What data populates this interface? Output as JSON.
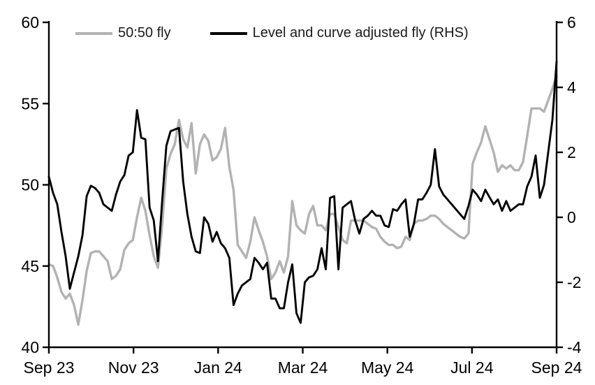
{
  "legend": {
    "items": [
      {
        "label": "50:50 fly",
        "color": "#b2b2b2",
        "swatch": "gray-line-swatch"
      },
      {
        "label": "Level and curve adjusted fly (RHS)",
        "color": "#000000",
        "swatch": "black-line-swatch"
      }
    ]
  },
  "colors": {
    "axis": "#000000",
    "background": "#ffffff",
    "series_gray": "#b2b2b2",
    "series_black": "#000000"
  },
  "chart_data": {
    "type": "line",
    "title": "",
    "xlabel": "",
    "ylabel_left": "",
    "ylabel_right": "",
    "x_tick_labels": [
      "Sep 23",
      "Nov 23",
      "Jan 24",
      "Mar 24",
      "May 24",
      "Jul 24",
      "Sep 24"
    ],
    "left_axis": {
      "range": [
        40,
        60
      ],
      "ticks": [
        40,
        45,
        50,
        55,
        60
      ]
    },
    "right_axis": {
      "range": [
        -4,
        6
      ],
      "ticks": [
        -4,
        -2,
        0,
        2,
        4,
        6
      ]
    },
    "grid": false,
    "legend_position": "top",
    "sampling": "values sampled at ~3-day intervals from Sep 2023 to Sep 2024, evenly spaced in x",
    "series": [
      {
        "name": "50:50 fly",
        "axis": "left",
        "color": "#b2b2b2",
        "width": 3.4,
        "values": [
          45.1,
          45.0,
          44.3,
          43.4,
          43.0,
          43.3,
          42.6,
          41.4,
          42.9,
          44.7,
          45.8,
          45.9,
          45.9,
          45.6,
          45.3,
          44.2,
          44.4,
          44.8,
          46.0,
          46.4,
          46.6,
          48.0,
          49.2,
          48.4,
          46.9,
          45.6,
          44.9,
          47.5,
          51.0,
          51.9,
          52.5,
          54.0,
          52.8,
          52.3,
          53.8,
          50.7,
          52.5,
          53.1,
          52.7,
          51.5,
          51.7,
          52.2,
          53.5,
          51.1,
          49.7,
          46.3,
          45.9,
          45.5,
          46.5,
          48.0,
          47.2,
          46.5,
          45.6,
          44.2,
          44.6,
          45.3,
          44.6,
          45.6,
          49.0,
          47.5,
          47.2,
          47.0,
          48.2,
          48.7,
          47.5,
          47.5,
          47.2,
          48.2,
          48.2,
          47.4,
          46.6,
          46.4,
          47.8,
          47.8,
          47.8,
          47.8,
          47.6,
          47.4,
          47.3,
          46.8,
          46.5,
          46.3,
          46.3,
          46.1,
          46.2,
          46.8,
          46.6,
          47.6,
          47.8,
          47.8,
          47.9,
          48.1,
          48.1,
          47.9,
          47.6,
          47.4,
          47.2,
          47.0,
          46.8,
          46.7,
          47.0,
          51.3,
          52.0,
          52.6,
          53.6,
          52.8,
          52.0,
          50.8,
          51.2,
          51.0,
          51.2,
          50.9,
          50.9,
          51.4,
          53.0,
          54.7,
          54.7,
          54.7,
          54.5,
          55.2,
          55.9,
          56.7
        ]
      },
      {
        "name": "Level and curve adjusted fly (RHS)",
        "axis": "right",
        "color": "#000000",
        "width": 2.9,
        "values": [
          1.25,
          0.75,
          0.4,
          -0.45,
          -1.2,
          -2.2,
          -1.7,
          -1.2,
          -0.55,
          0.65,
          0.97,
          0.9,
          0.75,
          0.4,
          0.3,
          0.2,
          0.7,
          1.1,
          1.3,
          1.9,
          2.0,
          3.3,
          2.45,
          2.4,
          0.3,
          -0.1,
          -1.35,
          0.5,
          2.2,
          2.65,
          2.7,
          2.75,
          1.1,
          0.1,
          -0.6,
          -1.05,
          -1.1,
          0.0,
          -0.2,
          -0.75,
          -0.45,
          -0.8,
          -0.95,
          -1.25,
          -2.7,
          -2.35,
          -2.1,
          -2.0,
          -1.9,
          -1.25,
          -1.4,
          -1.6,
          -1.4,
          -2.5,
          -2.5,
          -2.8,
          -2.8,
          -2.0,
          -1.45,
          -2.95,
          -3.25,
          -2.0,
          -1.85,
          -1.8,
          -1.6,
          -0.95,
          -1.6,
          0.6,
          0.65,
          -1.6,
          0.3,
          0.4,
          0.5,
          -0.1,
          -0.5,
          -0.05,
          0.05,
          0.2,
          0.05,
          0.05,
          -0.25,
          -0.3,
          0.25,
          0.2,
          0.4,
          0.55,
          -0.6,
          -0.2,
          0.55,
          0.55,
          0.75,
          1.0,
          2.1,
          0.95,
          0.7,
          0.55,
          0.4,
          0.25,
          0.1,
          -0.05,
          0.35,
          0.85,
          0.7,
          0.5,
          0.85,
          0.62,
          0.4,
          0.55,
          0.2,
          0.5,
          0.2,
          0.3,
          0.4,
          0.4,
          0.95,
          1.25,
          1.9,
          0.6,
          1.0,
          2.0,
          3.0,
          4.8
        ]
      }
    ]
  }
}
